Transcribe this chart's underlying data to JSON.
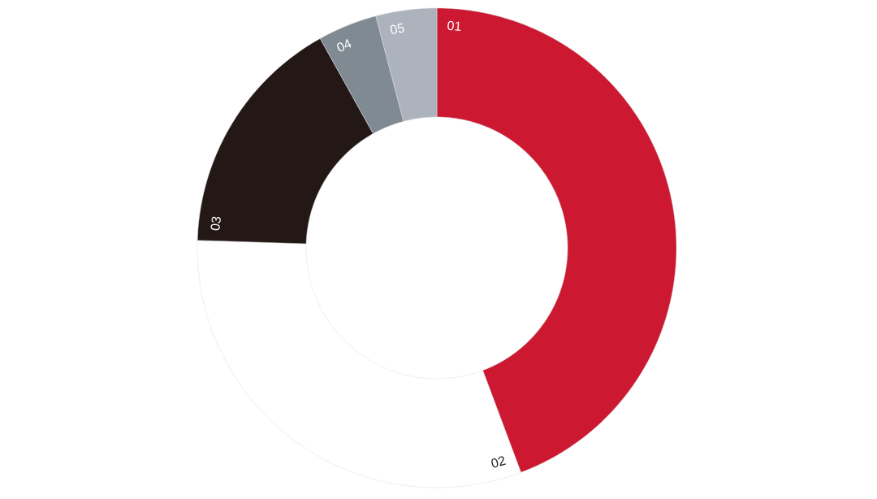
{
  "chart_data": {
    "type": "donut",
    "categories": [
      "01",
      "02",
      "03",
      "04",
      "05"
    ],
    "values": [
      44.3,
      31.2,
      16.4,
      4.0,
      4.1
    ],
    "colors": [
      "#cc1830",
      "#ffffff",
      "#231816",
      "#7f8a93",
      "#adb3bc"
    ]
  }
}
